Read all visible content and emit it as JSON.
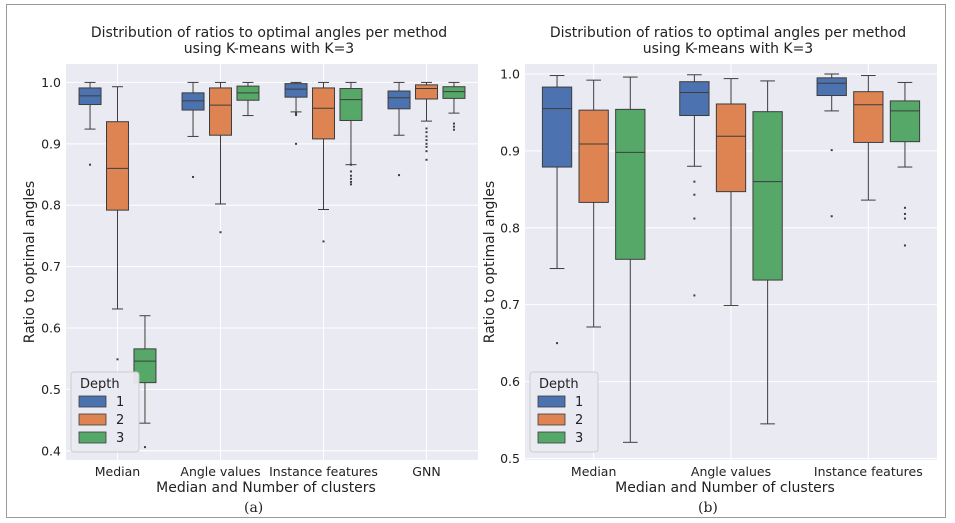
{
  "figure": {
    "caption_a": "(a)",
    "caption_b": "(b)"
  },
  "chart_data": [
    {
      "type": "box",
      "panel": "a",
      "title": "Distribution of ratios to optimal angles per method",
      "subtitle": "using K-means with K=3",
      "xlabel": "Median and Number of clusters",
      "ylabel": "Ratio to optimal angles",
      "ylim": [
        0.385,
        1.03
      ],
      "yticks": [
        0.4,
        0.5,
        0.6,
        0.7,
        0.8,
        0.9,
        1.0
      ],
      "ytick_labels": [
        "0.4",
        "0.5",
        "0.6",
        "0.7",
        "0.8",
        "0.9",
        "1.0"
      ],
      "grid": true,
      "categories": [
        "Median",
        "Angle values",
        "Instance features",
        "GNN"
      ],
      "legend": {
        "title": "Depth",
        "placement": "lower-left",
        "entries": [
          "1",
          "2",
          "3"
        ]
      },
      "series": [
        {
          "name": "1",
          "color": "#4c72b0",
          "boxes": [
            {
              "whislo": 0.924,
              "q1": 0.964,
              "med": 0.978,
              "q3": 0.991,
              "whishi": 1.0,
              "fliers": [
                0.866
              ]
            },
            {
              "whislo": 0.912,
              "q1": 0.955,
              "med": 0.97,
              "q3": 0.983,
              "whishi": 1.0,
              "fliers": [
                0.846
              ]
            },
            {
              "whislo": 0.952,
              "q1": 0.976,
              "med": 0.989,
              "q3": 0.998,
              "whishi": 1.0,
              "fliers": [
                0.9,
                0.947,
                0.95
              ]
            },
            {
              "whislo": 0.914,
              "q1": 0.957,
              "med": 0.975,
              "q3": 0.986,
              "whishi": 1.0,
              "fliers": [
                0.849
              ]
            }
          ]
        },
        {
          "name": "2",
          "color": "#dd8452",
          "boxes": [
            {
              "whislo": 0.631,
              "q1": 0.792,
              "med": 0.86,
              "q3": 0.936,
              "whishi": 0.993,
              "fliers": [
                0.549
              ]
            },
            {
              "whislo": 0.802,
              "q1": 0.914,
              "med": 0.963,
              "q3": 0.991,
              "whishi": 1.0,
              "fliers": [
                0.756
              ]
            },
            {
              "whislo": 0.793,
              "q1": 0.908,
              "med": 0.958,
              "q3": 0.991,
              "whishi": 1.0,
              "fliers": [
                0.741
              ]
            },
            {
              "whislo": 0.937,
              "q1": 0.973,
              "med": 0.99,
              "q3": 0.996,
              "whishi": 1.0,
              "fliers": [
                0.874,
                0.888,
                0.895,
                0.9,
                0.906,
                0.912,
                0.919,
                0.925
              ]
            }
          ]
        },
        {
          "name": "3",
          "color": "#55a868",
          "boxes": [
            {
              "whislo": 0.445,
              "q1": 0.511,
              "med": 0.546,
              "q3": 0.566,
              "whishi": 0.62,
              "fliers": [
                0.406
              ]
            },
            {
              "whislo": 0.946,
              "q1": 0.971,
              "med": 0.983,
              "q3": 0.994,
              "whishi": 1.0,
              "fliers": []
            },
            {
              "whislo": 0.866,
              "q1": 0.938,
              "med": 0.972,
              "q3": 0.99,
              "whishi": 1.0,
              "fliers": [
                0.834,
                0.838,
                0.843,
                0.848,
                0.855,
                0.866
              ]
            },
            {
              "whislo": 0.95,
              "q1": 0.974,
              "med": 0.985,
              "q3": 0.993,
              "whishi": 1.0,
              "fliers": [
                0.923,
                0.928,
                0.933
              ]
            }
          ]
        }
      ]
    },
    {
      "type": "box",
      "panel": "b",
      "title": "Distribution of ratios to optimal angles per method",
      "subtitle": "using K-means with K=3",
      "xlabel": "Median and Number of clusters",
      "ylabel": "Ratio to optimal angles",
      "ylim": [
        0.498,
        1.013
      ],
      "yticks": [
        0.5,
        0.6,
        0.7,
        0.8,
        0.9,
        1.0
      ],
      "ytick_labels": [
        "0.5",
        "0.6",
        "0.7",
        "0.8",
        "0.9",
        "1.0"
      ],
      "grid": true,
      "categories": [
        "Median",
        "Angle values",
        "Instance features"
      ],
      "legend": {
        "title": "Depth",
        "placement": "lower-left",
        "entries": [
          "1",
          "2",
          "3"
        ]
      },
      "series": [
        {
          "name": "1",
          "color": "#4c72b0",
          "boxes": [
            {
              "whislo": 0.747,
              "q1": 0.879,
              "med": 0.955,
              "q3": 0.983,
              "whishi": 0.998,
              "fliers": [
                0.65
              ]
            },
            {
              "whislo": 0.88,
              "q1": 0.946,
              "med": 0.976,
              "q3": 0.99,
              "whishi": 0.999,
              "fliers": [
                0.712,
                0.812,
                0.843,
                0.86
              ]
            },
            {
              "whislo": 0.952,
              "q1": 0.972,
              "med": 0.988,
              "q3": 0.995,
              "whishi": 1.0,
              "fliers": [
                0.815,
                0.901
              ]
            }
          ]
        },
        {
          "name": "2",
          "color": "#dd8452",
          "boxes": [
            {
              "whislo": 0.671,
              "q1": 0.833,
              "med": 0.909,
              "q3": 0.953,
              "whishi": 0.992,
              "fliers": []
            },
            {
              "whislo": 0.699,
              "q1": 0.847,
              "med": 0.919,
              "q3": 0.961,
              "whishi": 0.994,
              "fliers": []
            },
            {
              "whislo": 0.836,
              "q1": 0.911,
              "med": 0.96,
              "q3": 0.977,
              "whishi": 0.998,
              "fliers": []
            }
          ]
        },
        {
          "name": "3",
          "color": "#55a868",
          "boxes": [
            {
              "whislo": 0.521,
              "q1": 0.759,
              "med": 0.898,
              "q3": 0.954,
              "whishi": 0.996,
              "fliers": []
            },
            {
              "whislo": 0.545,
              "q1": 0.732,
              "med": 0.86,
              "q3": 0.951,
              "whishi": 0.991,
              "fliers": []
            },
            {
              "whislo": 0.879,
              "q1": 0.912,
              "med": 0.952,
              "q3": 0.965,
              "whishi": 0.989,
              "fliers": [
                0.777,
                0.812,
                0.818,
                0.826
              ]
            }
          ]
        }
      ]
    }
  ]
}
